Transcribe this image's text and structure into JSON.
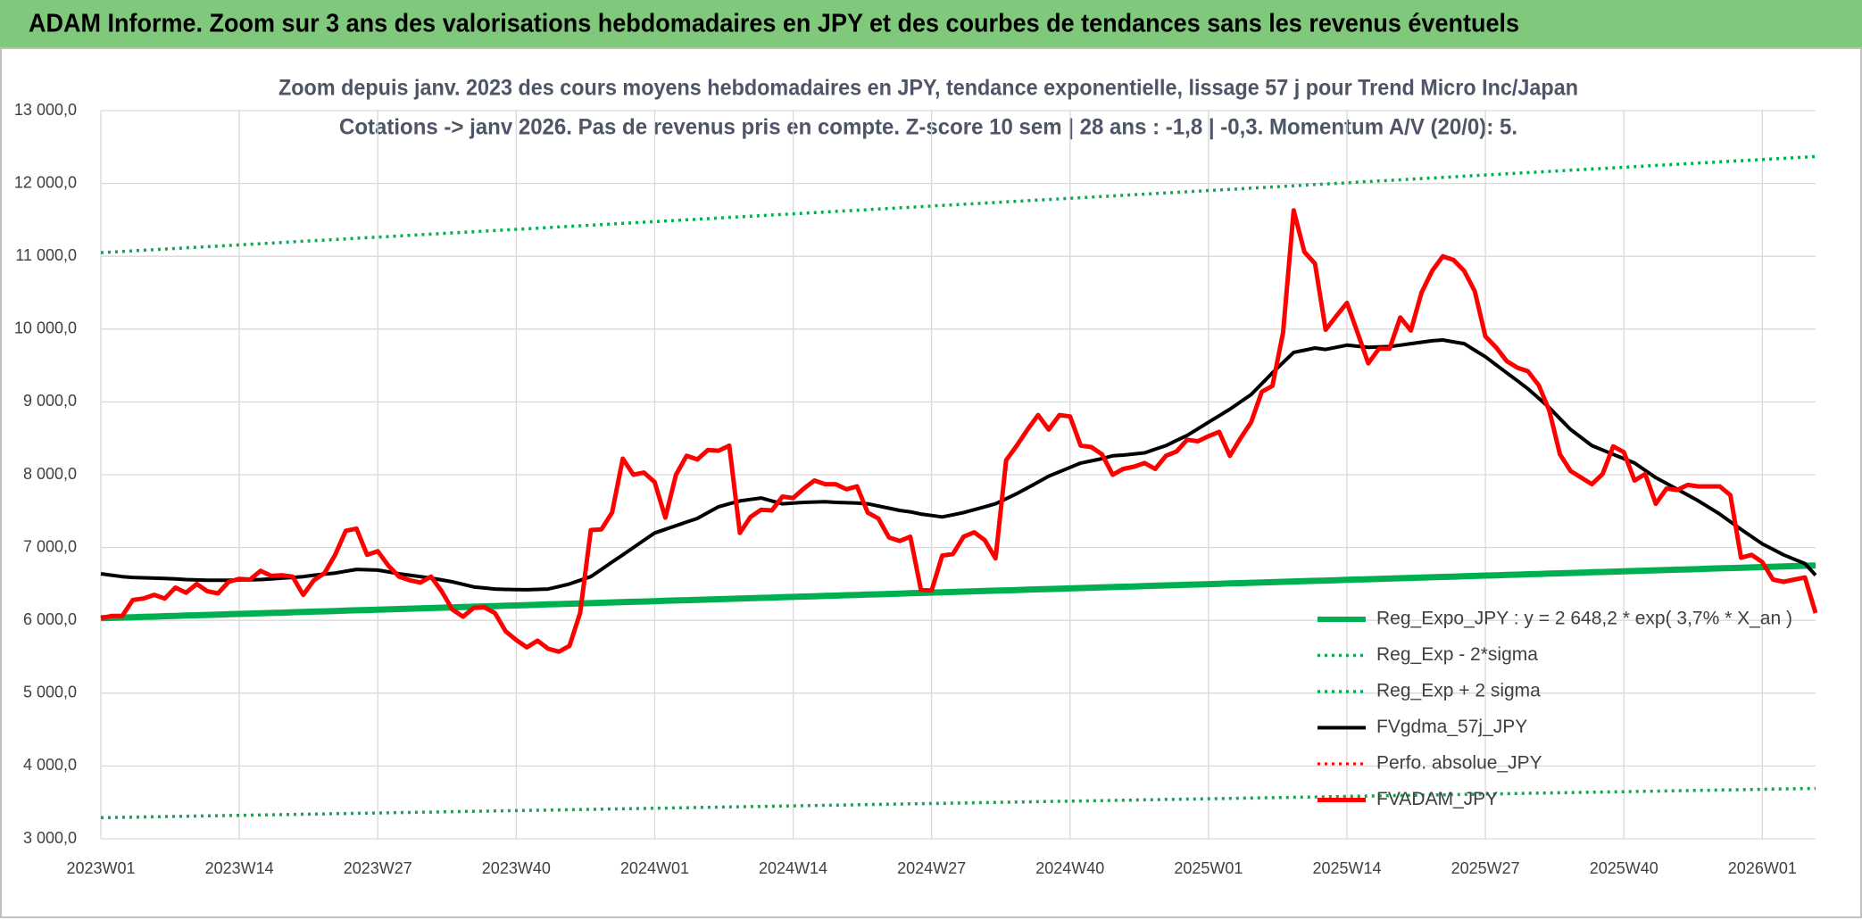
{
  "header": {
    "title": "ADAM Informe. Zoom sur 3 ans des valorisations hebdomadaires en JPY et des courbes de tendances sans les revenus éventuels"
  },
  "chart_data": {
    "type": "line",
    "title": "Zoom depuis janv. 2023 des cours moyens hebdomadaires en JPY, tendance exponentielle, lissage 57 j pour Trend Micro Inc/Japan",
    "subtitle": "Cotations -> janv 2026. Pas de revenus pris en compte. Z-score 10 sem | 28 ans : -1,8 | -0,3. Momentum A/V (20/0): 5.",
    "categories": [
      "2023W01",
      null,
      null,
      null,
      null,
      null,
      null,
      null,
      null,
      null,
      null,
      null,
      null,
      "2023W14",
      null,
      null,
      null,
      null,
      null,
      null,
      null,
      null,
      null,
      null,
      null,
      null,
      "2023W27",
      null,
      null,
      null,
      null,
      null,
      null,
      null,
      null,
      null,
      null,
      null,
      null,
      "2023W40",
      null,
      null,
      null,
      null,
      null,
      null,
      null,
      null,
      null,
      null,
      null,
      null,
      "2024W01",
      null,
      null,
      null,
      null,
      null,
      null,
      null,
      null,
      null,
      null,
      null,
      null,
      "2024W14",
      null,
      null,
      null,
      null,
      null,
      null,
      null,
      null,
      null,
      null,
      null,
      null,
      "2024W27",
      null,
      null,
      null,
      null,
      null,
      null,
      null,
      null,
      null,
      null,
      null,
      null,
      "2024W40",
      null,
      null,
      null,
      null,
      null,
      null,
      null,
      null,
      null,
      null,
      null,
      null,
      "2025W01",
      null,
      null,
      null,
      null,
      null,
      null,
      null,
      null,
      null,
      null,
      null,
      null,
      "2025W14",
      null,
      null,
      null,
      null,
      null,
      null,
      null,
      null,
      null,
      null,
      null,
      null,
      "2025W27",
      null,
      null,
      null,
      null,
      null,
      null,
      null,
      null,
      null,
      null,
      null,
      null,
      "2025W40",
      null,
      null,
      null,
      null,
      null,
      null,
      null,
      null,
      null,
      null,
      null,
      null,
      "2026W01",
      null,
      null,
      null,
      null,
      null
    ],
    "ylim": [
      3000,
      13000
    ],
    "yticks": [
      {
        "value": 3000,
        "label": "3 000,0"
      },
      {
        "value": 4000,
        "label": "4 000,0"
      },
      {
        "value": 5000,
        "label": "5 000,0"
      },
      {
        "value": 6000,
        "label": "6 000,0"
      },
      {
        "value": 7000,
        "label": "7 000,0"
      },
      {
        "value": 8000,
        "label": "8 000,0"
      },
      {
        "value": 9000,
        "label": "9 000,0"
      },
      {
        "value": 10000,
        "label": "10 000,0"
      },
      {
        "value": 11000,
        "label": "11 000,0"
      },
      {
        "value": 12000,
        "label": "12 000,0"
      },
      {
        "value": 13000,
        "label": "13 000,0"
      }
    ],
    "grid": true,
    "legend": "bottom-right",
    "series": [
      {
        "name": "Reg_Expo_JPY : y = 2 648,2 * exp( 3,7% *  X_an )",
        "color": "#00b050",
        "style": "solid",
        "values": [
          6030,
          6034,
          6039,
          6043,
          6048,
          6052,
          6057,
          6061,
          6066,
          6070,
          6075,
          6079,
          6084,
          6088,
          6093,
          6097,
          6102,
          6106,
          6111,
          6115,
          6120,
          6124,
          6129,
          6133,
          6138,
          6142,
          6147,
          6151,
          6156,
          6160,
          6165,
          6169,
          6174,
          6178,
          6183,
          6187,
          6192,
          6196,
          6201,
          6205,
          6210,
          6214,
          6219,
          6223,
          6228,
          6232,
          6237,
          6241,
          6246,
          6250,
          6255,
          6259,
          6264,
          6268,
          6273,
          6277,
          6282,
          6286,
          6291,
          6295,
          6300,
          6304,
          6309,
          6313,
          6318,
          6322,
          6327,
          6331,
          6336,
          6340,
          6345,
          6349,
          6354,
          6358,
          6363,
          6367,
          6372,
          6376,
          6381,
          6385,
          6390,
          6394,
          6399,
          6403,
          6408,
          6412,
          6417,
          6421,
          6426,
          6430,
          6435,
          6439,
          6444,
          6448,
          6453,
          6457,
          6462,
          6466,
          6471,
          6475,
          6480,
          6484,
          6489,
          6493,
          6498,
          6502,
          6507,
          6511,
          6516,
          6520,
          6525,
          6529,
          6534,
          6538,
          6543,
          6547,
          6552,
          6556,
          6561,
          6565,
          6570,
          6574,
          6579,
          6583,
          6588,
          6592,
          6597,
          6601,
          6606,
          6610,
          6615,
          6619,
          6624,
          6628,
          6633,
          6637,
          6642,
          6646,
          6651,
          6655,
          6660,
          6664,
          6669,
          6673,
          6678,
          6682,
          6687,
          6691,
          6696,
          6700,
          6705,
          6709,
          6714,
          6718,
          6723,
          6727,
          6732,
          6736,
          6741,
          6745,
          6750,
          6754
        ]
      },
      {
        "name": "Reg_Exp - 2*sigma",
        "color": "#00b050",
        "style": "dotted",
        "values": [
          3290,
          3292,
          3295,
          3297,
          3300,
          3302,
          3305,
          3307,
          3310,
          3312,
          3315,
          3317,
          3320,
          3322,
          3325,
          3327,
          3330,
          3332,
          3335,
          3337,
          3340,
          3342,
          3345,
          3347,
          3350,
          3352,
          3355,
          3357,
          3360,
          3362,
          3365,
          3367,
          3370,
          3372,
          3375,
          3377,
          3380,
          3382,
          3385,
          3387,
          3390,
          3392,
          3395,
          3397,
          3400,
          3402,
          3405,
          3407,
          3410,
          3412,
          3415,
          3417,
          3420,
          3422,
          3425,
          3427,
          3430,
          3432,
          3435,
          3437,
          3440,
          3442,
          3445,
          3447,
          3450,
          3452,
          3455,
          3457,
          3460,
          3462,
          3465,
          3467,
          3470,
          3472,
          3475,
          3477,
          3480,
          3482,
          3485,
          3487,
          3490,
          3492,
          3495,
          3497,
          3500,
          3502,
          3505,
          3507,
          3510,
          3512,
          3515,
          3517,
          3520,
          3522,
          3525,
          3527,
          3530,
          3532,
          3535,
          3537,
          3540,
          3542,
          3545,
          3547,
          3550,
          3552,
          3555,
          3557,
          3560,
          3562,
          3565,
          3567,
          3570,
          3572,
          3575,
          3577,
          3580,
          3582,
          3585,
          3587,
          3590,
          3592,
          3595,
          3597,
          3600,
          3602,
          3605,
          3607,
          3610,
          3612,
          3615,
          3617,
          3620,
          3622,
          3625,
          3627,
          3630,
          3632,
          3635,
          3637,
          3640,
          3642,
          3645,
          3647,
          3650,
          3652,
          3655,
          3657,
          3660,
          3662,
          3665,
          3667,
          3670,
          3672,
          3675,
          3677,
          3680,
          3682,
          3685,
          3687,
          3690,
          3692
        ]
      },
      {
        "name": "Reg_Exp + 2 sigma",
        "color": "#00b050",
        "style": "dotted",
        "values": [
          11050,
          11058,
          11066,
          11075,
          11083,
          11091,
          11099,
          11107,
          11116,
          11124,
          11132,
          11140,
          11148,
          11157,
          11165,
          11173,
          11181,
          11189,
          11198,
          11206,
          11214,
          11222,
          11230,
          11239,
          11247,
          11255,
          11263,
          11271,
          11280,
          11288,
          11296,
          11304,
          11312,
          11321,
          11329,
          11337,
          11345,
          11353,
          11362,
          11370,
          11378,
          11386,
          11394,
          11403,
          11411,
          11419,
          11427,
          11435,
          11444,
          11452,
          11460,
          11468,
          11476,
          11485,
          11493,
          11501,
          11509,
          11517,
          11526,
          11534,
          11542,
          11550,
          11558,
          11567,
          11575,
          11583,
          11591,
          11599,
          11608,
          11616,
          11624,
          11632,
          11640,
          11649,
          11657,
          11665,
          11673,
          11681,
          11690,
          11698,
          11706,
          11714,
          11722,
          11731,
          11739,
          11747,
          11755,
          11763,
          11772,
          11780,
          11788,
          11796,
          11804,
          11813,
          11821,
          11829,
          11837,
          11845,
          11854,
          11862,
          11870,
          11878,
          11886,
          11895,
          11903,
          11911,
          11919,
          11927,
          11936,
          11944,
          11952,
          11960,
          11968,
          11977,
          11985,
          11993,
          12001,
          12009,
          12018,
          12026,
          12034,
          12042,
          12050,
          12059,
          12067,
          12075,
          12083,
          12091,
          12100,
          12108,
          12116,
          12124,
          12132,
          12141,
          12149,
          12157,
          12165,
          12173,
          12182,
          12190,
          12198,
          12206,
          12214,
          12223,
          12231,
          12239,
          12247,
          12255,
          12264,
          12272,
          12280,
          12288,
          12296,
          12305,
          12313,
          12321,
          12329,
          12337,
          12346,
          12354,
          12362,
          12370
        ]
      },
      {
        "name": "FVgdma_57j_JPY",
        "color": "#000000",
        "style": "solid",
        "values": [
          6640,
          6620,
          6600,
          6590,
          6585,
          6580,
          6575,
          6570,
          6560,
          6555,
          6550,
          6550,
          6550,
          6555,
          6558,
          6560,
          6570,
          6580,
          6590,
          6600,
          6620,
          6635,
          6650,
          6675,
          6700,
          6695,
          6690,
          6665,
          6640,
          6620,
          6600,
          6580,
          6555,
          6530,
          6495,
          6460,
          6445,
          6430,
          6425,
          6422,
          6420,
          6425,
          6430,
          6465,
          6500,
          6550,
          6600,
          6700,
          6800,
          6900,
          7000,
          7100,
          7200,
          7250,
          7300,
          7350,
          7400,
          7480,
          7560,
          7600,
          7640,
          7660,
          7680,
          7640,
          7600,
          7610,
          7620,
          7625,
          7630,
          7620,
          7615,
          7610,
          7600,
          7570,
          7540,
          7510,
          7490,
          7460,
          7440,
          7420,
          7450,
          7480,
          7520,
          7560,
          7600,
          7670,
          7740,
          7820,
          7900,
          7980,
          8040,
          8100,
          8160,
          8190,
          8220,
          8260,
          8270,
          8285,
          8300,
          8350,
          8400,
          8470,
          8540,
          8630,
          8720,
          8810,
          8900,
          9000,
          9100,
          9250,
          9400,
          9540,
          9680,
          9710,
          9740,
          9720,
          9750,
          9780,
          9765,
          9750,
          9755,
          9760,
          9780,
          9800,
          9820,
          9840,
          9850,
          9825,
          9800,
          9710,
          9620,
          9510,
          9400,
          9290,
          9180,
          9050,
          8920,
          8770,
          8620,
          8510,
          8400,
          8340,
          8280,
          8220,
          8160,
          8060,
          7960,
          7880,
          7800,
          7720,
          7640,
          7550,
          7460,
          7355,
          7250,
          7150,
          7050,
          6975,
          6900,
          6840,
          6780,
          6620
        ]
      },
      {
        "name": "Perfo. absolue_JPY",
        "color": "#ff0000",
        "style": "dotted"
      },
      {
        "name": "FVADAM_JPY",
        "color": "#ff0000",
        "style": "solid",
        "values": [
          6030,
          6060,
          6060,
          6280,
          6300,
          6350,
          6300,
          6450,
          6380,
          6500,
          6400,
          6370,
          6530,
          6570,
          6560,
          6680,
          6610,
          6620,
          6600,
          6350,
          6550,
          6650,
          6900,
          7230,
          7260,
          6900,
          6950,
          6750,
          6600,
          6550,
          6520,
          6600,
          6400,
          6150,
          6050,
          6170,
          6180,
          6100,
          5850,
          5730,
          5630,
          5720,
          5610,
          5570,
          5650,
          6100,
          7240,
          7250,
          7480,
          8220,
          8000,
          8030,
          7900,
          7410,
          8000,
          8260,
          8210,
          8340,
          8330,
          8400,
          7200,
          7420,
          7520,
          7510,
          7700,
          7680,
          7810,
          7920,
          7870,
          7870,
          7800,
          7840,
          7480,
          7400,
          7140,
          7090,
          7150,
          6420,
          6410,
          6890,
          6910,
          7150,
          7210,
          7100,
          6850,
          8200,
          8400,
          8620,
          8820,
          8620,
          8820,
          8800,
          8400,
          8380,
          8280,
          8000,
          8080,
          8110,
          8160,
          8080,
          8260,
          8320,
          8480,
          8460,
          8530,
          8590,
          8260,
          8500,
          8720,
          9140,
          9220,
          9950,
          11630,
          11060,
          10900,
          9990,
          10180,
          10360,
          9950,
          9530,
          9730,
          9730,
          10160,
          9980,
          10500,
          10800,
          11000,
          10950,
          10800,
          10520,
          9900,
          9750,
          9560,
          9470,
          9420,
          9230,
          8880,
          8280,
          8050,
          7960,
          7870,
          8010,
          8390,
          8310,
          7920,
          8010,
          7600,
          7810,
          7790,
          7860,
          7840,
          7840,
          7840,
          7720,
          6860,
          6900,
          6800,
          6560,
          6530,
          6560,
          6590,
          6100
        ]
      }
    ]
  }
}
